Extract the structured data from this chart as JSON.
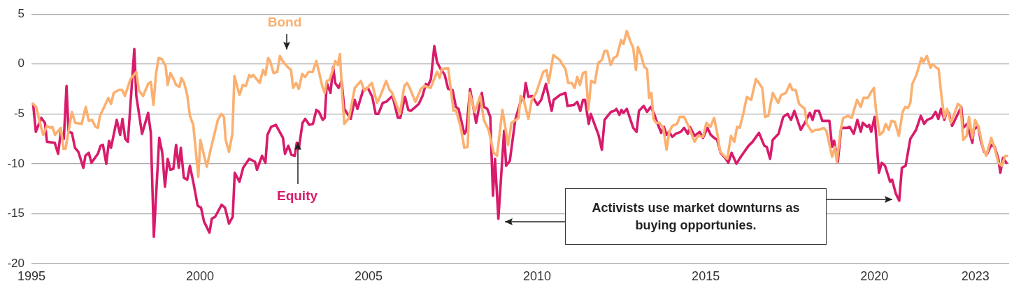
{
  "chart_data": {
    "type": "line",
    "grid": "y",
    "legend": false,
    "xlim": [
      1995,
      2024
    ],
    "xticks": [
      1995,
      2000,
      2005,
      2010,
      2015,
      2020,
      2023
    ],
    "ylim": [
      -20,
      5
    ],
    "yticks": [
      5,
      0,
      -5,
      -10,
      -15,
      -20
    ],
    "annotations": [
      "Activists use market downturns as buying opportunies."
    ],
    "series": [
      {
        "name": "Bond",
        "color": "#fbb070",
        "x": [
          1995.04,
          1995.14,
          1995.25,
          1995.35,
          1995.46,
          1995.56,
          1995.62,
          1995.7,
          1995.87,
          1995.95,
          1996.01,
          1996.2,
          1996.3,
          1996.49,
          1996.61,
          1996.7,
          1996.8,
          1996.9,
          1996.97,
          1997.03,
          1997.13,
          1997.28,
          1997.36,
          1997.44,
          1997.59,
          1997.69,
          1997.77,
          1997.94,
          1998.11,
          1998.19,
          1998.31,
          1998.46,
          1998.54,
          1998.62,
          1998.69,
          1998.77,
          1998.87,
          1998.98,
          1999.04,
          1999.12,
          1999.2,
          1999.29,
          1999.39,
          1999.45,
          1999.53,
          1999.62,
          1999.7,
          1999.8,
          1999.95,
          2000.01,
          2000.2,
          2000.32,
          2000.53,
          2000.63,
          2000.71,
          2000.76,
          2000.86,
          2000.96,
          2001.02,
          2001.17,
          2001.27,
          2001.36,
          2001.46,
          2001.52,
          2001.58,
          2001.77,
          2001.87,
          2001.94,
          2002.02,
          2002.08,
          2002.18,
          2002.29,
          2002.37,
          2002.45,
          2002.6,
          2002.7,
          2002.76,
          2002.85,
          2002.93,
          2003.03,
          2003.12,
          2003.22,
          2003.34,
          2003.45,
          2003.53,
          2003.63,
          2003.7,
          2003.76,
          2003.84,
          2003.94,
          2004.01,
          2004.09,
          2004.15,
          2004.21,
          2004.28,
          2004.42,
          2004.59,
          2004.77,
          2004.88,
          2005.04,
          2005.1,
          2005.25,
          2005.35,
          2005.52,
          2005.62,
          2005.7,
          2005.81,
          2005.93,
          2006.06,
          2006.14,
          2006.22,
          2006.39,
          2006.55,
          2006.66,
          2006.84,
          2007.03,
          2007.11,
          2007.17,
          2007.36,
          2007.52,
          2007.59,
          2007.73,
          2007.84,
          2007.94,
          2008.0,
          2008.15,
          2008.31,
          2008.42,
          2008.56,
          2008.71,
          2008.81,
          2008.97,
          2009.14,
          2009.24,
          2009.45,
          2009.51,
          2009.6,
          2009.74,
          2009.84,
          2009.97,
          2010.07,
          2010.18,
          2010.28,
          2010.34,
          2010.48,
          2010.67,
          2010.84,
          2010.92,
          2011.03,
          2011.11,
          2011.19,
          2011.27,
          2011.36,
          2011.44,
          2011.52,
          2011.6,
          2011.71,
          2011.81,
          2011.92,
          2012.0,
          2012.08,
          2012.18,
          2012.27,
          2012.37,
          2012.49,
          2012.56,
          2012.66,
          2012.76,
          2012.85,
          2012.93,
          2012.99,
          2013.08,
          2013.18,
          2013.26,
          2013.32,
          2013.39,
          2013.45,
          2013.53,
          2013.63,
          2013.74,
          2013.84,
          2013.92,
          2014.01,
          2014.15,
          2014.23,
          2014.36,
          2014.5,
          2014.67,
          2014.77,
          2014.92,
          2015.02,
          2015.14,
          2015.25,
          2015.35,
          2015.43,
          2015.64,
          2015.75,
          2015.85,
          2015.93,
          2016.01,
          2016.12,
          2016.22,
          2016.35,
          2016.49,
          2016.68,
          2016.76,
          2016.86,
          2016.99,
          2017.15,
          2017.24,
          2017.38,
          2017.5,
          2017.57,
          2017.67,
          2017.77,
          2017.94,
          2018.0,
          2018.15,
          2018.25,
          2018.35,
          2018.5,
          2018.58,
          2018.75,
          2018.83,
          2018.89,
          2019.0,
          2019.08,
          2019.22,
          2019.33,
          2019.49,
          2019.6,
          2019.68,
          2019.81,
          2019.89,
          2019.99,
          2020.05,
          2020.16,
          2020.26,
          2020.34,
          2020.43,
          2020.51,
          2020.61,
          2020.73,
          2020.84,
          2020.92,
          2021.0,
          2021.07,
          2021.13,
          2021.25,
          2021.4,
          2021.46,
          2021.56,
          2021.67,
          2021.73,
          2021.85,
          2021.91,
          2022.0,
          2022.08,
          2022.16,
          2022.27,
          2022.33,
          2022.48,
          2022.56,
          2022.64,
          2022.74,
          2022.81,
          2022.91,
          2022.99,
          2023.1,
          2023.22,
          2023.32,
          2023.47,
          2023.57,
          2023.68,
          2023.78,
          2023.89,
          2023.94
        ],
        "values": [
          -4.0,
          -4.3,
          -5.9,
          -7.1,
          -6.2,
          -6.4,
          -6.3,
          -7.1,
          -6.4,
          -8.5,
          -8.5,
          -4.8,
          -5.9,
          -6.0,
          -4.3,
          -5.7,
          -5.6,
          -6.3,
          -6.4,
          -5.2,
          -4.5,
          -3.4,
          -4.0,
          -2.9,
          -2.6,
          -2.6,
          -3.2,
          -1.5,
          -0.8,
          -2.7,
          -3.2,
          -2.0,
          -1.8,
          -4.1,
          -1.1,
          0.6,
          0.5,
          -0.2,
          -2.1,
          -0.9,
          -1.4,
          -2.1,
          -2.3,
          -1.4,
          -1.9,
          -3.1,
          -5.2,
          -6.1,
          -11.3,
          -7.6,
          -10.3,
          -8.5,
          -5.6,
          -5.0,
          -5.3,
          -7.6,
          -8.8,
          -7.0,
          -1.2,
          -3.1,
          -2.1,
          -2.2,
          -1.1,
          -1.3,
          -1.1,
          -1.9,
          -0.6,
          -1.1,
          0.6,
          0.3,
          -0.9,
          -0.8,
          0.8,
          0.3,
          -0.3,
          -0.6,
          -2.4,
          -1.9,
          -2.5,
          -1.0,
          -1.3,
          -0.8,
          -0.8,
          0.3,
          -0.8,
          -2.3,
          -2.9,
          -1.7,
          -1.6,
          -0.6,
          0.3,
          -0.1,
          1.0,
          -2.7,
          -6.0,
          -5.4,
          -2.4,
          -1.7,
          -2.7,
          -2.1,
          -1.9,
          -3.9,
          -3.2,
          -1.7,
          -2.6,
          -2.9,
          -3.9,
          -5.0,
          -2.2,
          -1.9,
          -2.4,
          -3.8,
          -2.5,
          -2.2,
          -2.4,
          -0.8,
          -1.4,
          -0.5,
          -0.4,
          -4.7,
          -4.6,
          -6.3,
          -8.4,
          -8.3,
          -2.9,
          -4.8,
          -3.2,
          -5.6,
          -6.6,
          -8.9,
          -9.2,
          -4.6,
          -8.1,
          -5.9,
          -5.4,
          -3.2,
          -3.6,
          -5.5,
          -3.6,
          -2.9,
          -1.9,
          -0.8,
          -0.6,
          -1.9,
          0.9,
          0.4,
          -0.5,
          -1.9,
          -1.9,
          -2.4,
          -1.3,
          -2.1,
          -0.9,
          -0.8,
          -4.6,
          -1.7,
          -1.9,
          0.1,
          0.4,
          1.3,
          1.3,
          -0.1,
          0.6,
          0.8,
          2.4,
          2.0,
          3.3,
          2.3,
          1.6,
          -0.6,
          1.7,
          0.9,
          -0.3,
          -0.5,
          -3.4,
          -2.9,
          -5.5,
          -5.9,
          -5.9,
          -6.4,
          -8.6,
          -6.8,
          -6.2,
          -6.0,
          -5.3,
          -5.3,
          -6.3,
          -7.8,
          -7.2,
          -7.3,
          -5.9,
          -6.3,
          -5.4,
          -7.1,
          -8.8,
          -9.5,
          -7.2,
          -7.8,
          -6.3,
          -6.4,
          -4.9,
          -3.3,
          -3.6,
          -1.5,
          -2.4,
          -5.3,
          -5.2,
          -2.9,
          -3.9,
          -3.1,
          -2.9,
          -2.0,
          -2.6,
          -2.6,
          -4.0,
          -4.5,
          -6.0,
          -6.8,
          -6.6,
          -6.6,
          -6.4,
          -6.7,
          -9.3,
          -8.3,
          -9.8,
          -6.7,
          -5.4,
          -5.2,
          -5.4,
          -3.6,
          -4.3,
          -3.4,
          -3.4,
          -2.9,
          -2.4,
          -4.6,
          -7.1,
          -6.8,
          -6.0,
          -6.6,
          -5.7,
          -5.8,
          -7.2,
          -4.8,
          -4.3,
          -4.4,
          -3.9,
          -2.0,
          -1.1,
          0.6,
          0.2,
          0.8,
          -0.4,
          0.0,
          -0.4,
          -0.5,
          -3.4,
          -5.4,
          -4.5,
          -5.9,
          -5.4,
          -4.0,
          -4.2,
          -7.6,
          -7.2,
          -5.3,
          -7.4,
          -5.6,
          -6.4,
          -8.3,
          -9.2,
          -7.4,
          -8.4,
          -9.9,
          -10.2,
          -9.2,
          -9.2
        ]
      },
      {
        "name": "Equity",
        "color": "#d81b6b",
        "x": [
          1995.05,
          1995.13,
          1995.29,
          1995.4,
          1995.46,
          1995.69,
          1995.79,
          1995.87,
          1995.96,
          1996.04,
          1996.1,
          1996.2,
          1996.29,
          1996.39,
          1996.54,
          1996.6,
          1996.7,
          1996.78,
          1996.97,
          1997.05,
          1997.12,
          1997.22,
          1997.3,
          1997.36,
          1997.53,
          1997.63,
          1997.7,
          1997.78,
          1997.86,
          1998.05,
          1998.11,
          1998.28,
          1998.46,
          1998.54,
          1998.63,
          1998.79,
          1998.88,
          1998.96,
          1999.04,
          1999.12,
          1999.21,
          1999.29,
          1999.37,
          1999.43,
          1999.52,
          1999.62,
          1999.7,
          1999.81,
          1999.93,
          2000.03,
          2000.12,
          2000.28,
          2000.35,
          2000.45,
          2000.64,
          2000.74,
          2000.86,
          2000.97,
          2001.03,
          2001.17,
          2001.28,
          2001.46,
          2001.63,
          2001.69,
          2001.84,
          2001.94,
          2002.0,
          2002.11,
          2002.25,
          2002.46,
          2002.52,
          2002.62,
          2002.71,
          2002.81,
          2002.87,
          2002.93,
          2003.04,
          2003.12,
          2003.24,
          2003.35,
          2003.45,
          2003.53,
          2003.64,
          2003.7,
          2003.76,
          2003.87,
          2003.95,
          2004.01,
          2004.11,
          2004.2,
          2004.28,
          2004.47,
          2004.59,
          2004.67,
          2004.84,
          2004.98,
          2005.11,
          2005.21,
          2005.29,
          2005.42,
          2005.52,
          2005.71,
          2005.87,
          2005.94,
          2006.08,
          2006.18,
          2006.25,
          2006.39,
          2006.49,
          2006.6,
          2006.7,
          2006.76,
          2006.85,
          2006.95,
          2007.03,
          2007.12,
          2007.26,
          2007.36,
          2007.49,
          2007.59,
          2007.67,
          2007.84,
          2007.9,
          2008.01,
          2008.19,
          2008.36,
          2008.42,
          2008.52,
          2008.61,
          2008.69,
          2008.75,
          2008.85,
          2009.02,
          2009.08,
          2009.19,
          2009.35,
          2009.54,
          2009.6,
          2009.66,
          2009.74,
          2009.85,
          2010.01,
          2010.12,
          2010.26,
          2010.43,
          2010.49,
          2010.68,
          2010.84,
          2010.9,
          2011.09,
          2011.19,
          2011.28,
          2011.36,
          2011.42,
          2011.53,
          2011.59,
          2011.82,
          2011.92,
          2012.0,
          2012.19,
          2012.29,
          2012.35,
          2012.44,
          2012.5,
          2012.56,
          2012.66,
          2012.85,
          2012.95,
          2013.02,
          2013.16,
          2013.26,
          2013.37,
          2013.47,
          2013.53,
          2013.68,
          2013.76,
          2013.84,
          2013.91,
          2014.01,
          2014.11,
          2014.26,
          2014.36,
          2014.47,
          2014.53,
          2014.67,
          2014.82,
          2014.92,
          2015.05,
          2015.15,
          2015.25,
          2015.34,
          2015.44,
          2015.6,
          2015.67,
          2015.77,
          2015.91,
          2016.06,
          2016.27,
          2016.39,
          2016.58,
          2016.74,
          2016.81,
          2016.91,
          2016.99,
          2017.16,
          2017.3,
          2017.43,
          2017.53,
          2017.63,
          2017.82,
          2017.94,
          2018.09,
          2018.17,
          2018.25,
          2018.36,
          2018.46,
          2018.67,
          2018.75,
          2018.81,
          2018.92,
          2019.02,
          2019.19,
          2019.27,
          2019.39,
          2019.5,
          2019.6,
          2019.66,
          2019.79,
          2019.85,
          2019.91,
          2020.01,
          2020.14,
          2020.22,
          2020.32,
          2020.47,
          2020.53,
          2020.64,
          2020.74,
          2020.82,
          2020.93,
          2021.07,
          2021.24,
          2021.38,
          2021.48,
          2021.57,
          2021.71,
          2021.82,
          2021.9,
          2021.98,
          2022.08,
          2022.15,
          2022.21,
          2022.31,
          2022.58,
          2022.64,
          2022.75,
          2022.91,
          2022.95,
          2023.08,
          2023.16,
          2023.26,
          2023.35,
          2023.47,
          2023.57,
          2023.68,
          2023.74,
          2023.82,
          2023.92
        ],
        "values": [
          -4.0,
          -6.8,
          -5.4,
          -5.9,
          -7.8,
          -7.9,
          -9.0,
          -6.8,
          -7.5,
          -2.2,
          -6.8,
          -6.9,
          -8.4,
          -8.8,
          -10.4,
          -9.2,
          -8.9,
          -9.9,
          -9.0,
          -8.2,
          -8.1,
          -10.0,
          -7.7,
          -8.4,
          -5.6,
          -7.1,
          -5.5,
          -7.5,
          -7.8,
          1.5,
          -3.2,
          -7.0,
          -4.9,
          -6.9,
          -17.3,
          -7.4,
          -8.9,
          -12.3,
          -9.5,
          -10.6,
          -10.5,
          -8.1,
          -10.4,
          -8.4,
          -11.4,
          -11.6,
          -10.2,
          -12.0,
          -14.2,
          -14.4,
          -15.8,
          -16.9,
          -15.5,
          -15.3,
          -14.1,
          -14.4,
          -16.0,
          -15.3,
          -10.9,
          -11.8,
          -10.4,
          -9.5,
          -9.8,
          -10.6,
          -9.2,
          -9.9,
          -7.1,
          -6.3,
          -6.1,
          -7.4,
          -9.0,
          -8.2,
          -9.1,
          -9.2,
          -7.9,
          -8.5,
          -5.9,
          -5.5,
          -6.1,
          -6.0,
          -4.6,
          -4.8,
          -5.6,
          -5.4,
          -1.9,
          -2.9,
          -0.3,
          -1.9,
          -2.4,
          -1.7,
          -4.5,
          -5.5,
          -3.6,
          -4.5,
          -2.6,
          -2.4,
          -3.3,
          -5.0,
          -5.0,
          -3.9,
          -3.8,
          -3.2,
          -5.4,
          -5.4,
          -3.3,
          -4.6,
          -4.7,
          -4.3,
          -4.0,
          -3.2,
          -2.0,
          -2.2,
          -1.5,
          1.8,
          0.2,
          -0.4,
          -1.1,
          -2.5,
          -2.6,
          -4.3,
          -4.5,
          -7.0,
          -6.7,
          -2.5,
          -5.9,
          -2.9,
          -4.3,
          -4.5,
          -5.3,
          -13.2,
          -9.5,
          -15.5,
          -6.7,
          -10.2,
          -9.7,
          -5.6,
          -3.4,
          -3.6,
          -1.9,
          -3.3,
          -3.2,
          -4.1,
          -3.6,
          -2.0,
          -4.7,
          -3.6,
          -3.1,
          -2.9,
          -4.2,
          -4.1,
          -3.8,
          -4.7,
          -3.6,
          -3.6,
          -6.0,
          -5.0,
          -7.1,
          -8.6,
          -5.6,
          -4.8,
          -4.7,
          -4.5,
          -5.1,
          -4.6,
          -4.9,
          -4.5,
          -6.4,
          -6.8,
          -4.7,
          -4.2,
          -4.8,
          -4.3,
          -5.0,
          -5.6,
          -6.9,
          -6.3,
          -7.1,
          -6.8,
          -7.3,
          -7.0,
          -6.8,
          -6.4,
          -7.0,
          -6.3,
          -7.2,
          -6.8,
          -7.4,
          -6.4,
          -7.1,
          -7.4,
          -7.6,
          -8.9,
          -9.5,
          -9.9,
          -8.9,
          -10.0,
          -9.2,
          -8.2,
          -7.8,
          -6.9,
          -8.2,
          -8.3,
          -9.5,
          -7.6,
          -7.0,
          -5.3,
          -5.0,
          -5.6,
          -4.7,
          -6.6,
          -5.9,
          -4.9,
          -5.6,
          -4.7,
          -4.7,
          -5.7,
          -5.7,
          -8.3,
          -7.7,
          -9.8,
          -6.4,
          -6.4,
          -6.3,
          -7.0,
          -5.6,
          -6.8,
          -5.9,
          -6.3,
          -6.1,
          -6.8,
          -5.3,
          -10.9,
          -9.9,
          -10.2,
          -11.8,
          -11.6,
          -13.0,
          -13.7,
          -10.4,
          -10.2,
          -7.5,
          -6.6,
          -5.2,
          -6.0,
          -5.6,
          -5.4,
          -4.8,
          -5.5,
          -4.5,
          -5.6,
          -4.7,
          -4.9,
          -6.2,
          -4.3,
          -6.4,
          -6.0,
          -7.9,
          -6.6,
          -6.2,
          -7.7,
          -8.8,
          -9.0,
          -8.1,
          -8.3,
          -9.5,
          -10.9,
          -9.4,
          -9.9
        ]
      }
    ]
  }
}
